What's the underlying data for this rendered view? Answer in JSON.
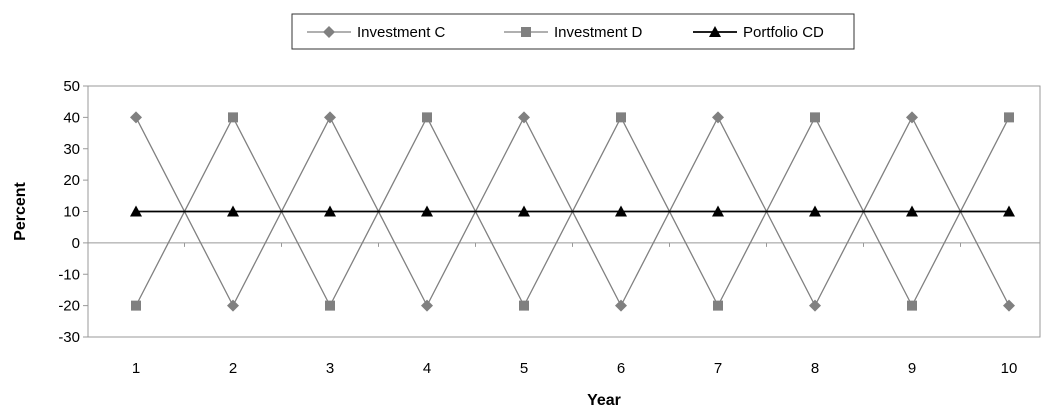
{
  "chart_data": {
    "type": "line",
    "xlabel": "Year",
    "ylabel": "Percent",
    "x": [
      1,
      2,
      3,
      4,
      5,
      6,
      7,
      8,
      9,
      10
    ],
    "ylim": [
      -30,
      50
    ],
    "yticks": [
      -30,
      -20,
      -10,
      0,
      10,
      20,
      30,
      40,
      50
    ],
    "grid": false,
    "legend_position": "top-center",
    "series": [
      {
        "name": "Investment C",
        "marker": "diamond",
        "color": "#808080",
        "values": [
          40,
          -20,
          40,
          -20,
          40,
          -20,
          40,
          -20,
          40,
          -20
        ]
      },
      {
        "name": "Investment D",
        "marker": "square",
        "color": "#808080",
        "values": [
          -20,
          40,
          -20,
          40,
          -20,
          40,
          -20,
          40,
          -20,
          40
        ]
      },
      {
        "name": "Portfolio CD",
        "marker": "triangle",
        "color": "#000000",
        "values": [
          10,
          10,
          10,
          10,
          10,
          10,
          10,
          10,
          10,
          10
        ]
      }
    ]
  }
}
